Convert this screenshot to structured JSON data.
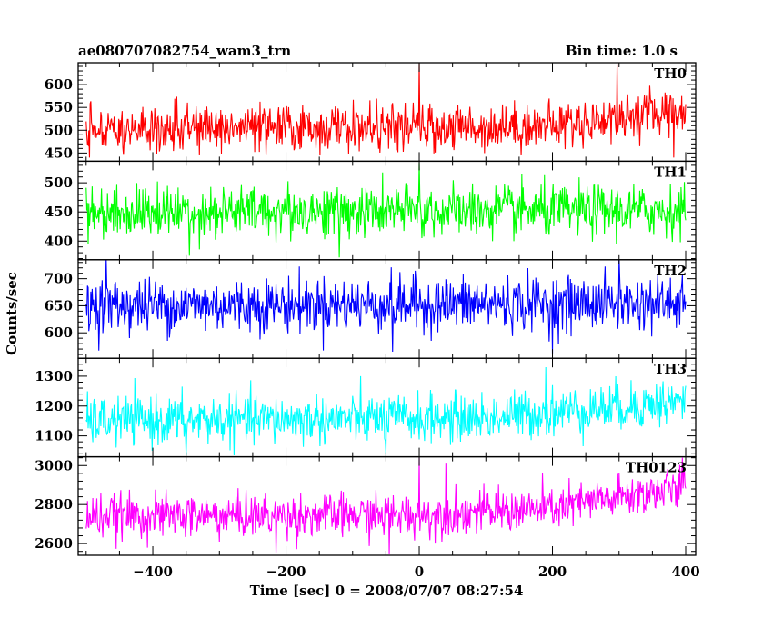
{
  "chart_data": {
    "type": "line",
    "title": "ae080707082754_wam3_trn",
    "bin_time_label": "Bin time: 1.0 s",
    "xlabel": "Time [sec] 0 = 2008/07/07 08:27:54",
    "ylabel": "Counts/sec",
    "xlim": [
      -512,
      415
    ],
    "x_range": [
      -500,
      400
    ],
    "x_ticks": [
      -400,
      -200,
      0,
      200,
      400
    ],
    "x_tick_labels": [
      "−400",
      "−200",
      "0",
      "200",
      "400"
    ],
    "panels": [
      {
        "name": "TH0",
        "color": "#ff0000",
        "ylim": [
          432,
          648
        ],
        "y_ticks": [
          450,
          500,
          550,
          600
        ],
        "y_tick_labels": [
          "450",
          "500",
          "550",
          "600"
        ],
        "trend": [
          [
            -500,
            505
          ],
          [
            0,
            505
          ],
          [
            200,
            510
          ],
          [
            400,
            545
          ]
        ],
        "noise_sd": 25,
        "spikes": [
          [
            -495,
            440
          ],
          [
            -230,
            445
          ],
          [
            0,
            650
          ],
          [
            297,
            645
          ],
          [
            382,
            440
          ]
        ]
      },
      {
        "name": "TH1",
        "color": "#00ff00",
        "ylim": [
          368,
          537
        ],
        "y_ticks": [
          400,
          450,
          500
        ],
        "y_tick_labels": [
          "400",
          "450",
          "500"
        ],
        "trend": [
          [
            -500,
            450
          ],
          [
            400,
            452
          ]
        ],
        "noise_sd": 22,
        "spikes": [
          [
            -120,
            372
          ],
          [
            0,
            535
          ],
          [
            -345,
            375
          ]
        ]
      },
      {
        "name": "TH2",
        "color": "#0000ff",
        "ylim": [
          553,
          735
        ],
        "y_ticks": [
          600,
          650,
          700
        ],
        "y_tick_labels": [
          "600",
          "650",
          "700"
        ],
        "trend": [
          [
            -500,
            650
          ],
          [
            400,
            655
          ]
        ],
        "noise_sd": 25,
        "spikes": [
          [
            -470,
            740
          ],
          [
            200,
            560
          ],
          [
            -40,
            565
          ],
          [
            300,
            740
          ]
        ]
      },
      {
        "name": "TH3",
        "color": "#00ffff",
        "ylim": [
          1030,
          1360
        ],
        "y_ticks": [
          1100,
          1200,
          1300
        ],
        "y_tick_labels": [
          "1100",
          "1200",
          "1300"
        ],
        "trend": [
          [
            -500,
            1150
          ],
          [
            100,
            1160
          ],
          [
            200,
            1180
          ],
          [
            400,
            1215
          ]
        ],
        "noise_sd": 40,
        "spikes": [
          [
            -350,
            1035
          ],
          [
            -50,
            1040
          ],
          [
            190,
            1330
          ]
        ]
      },
      {
        "name": "TH0123",
        "color": "#ff00ff",
        "ylim": [
          2540,
          3045
        ],
        "y_ticks": [
          2600,
          2800,
          3000
        ],
        "y_tick_labels": [
          "2600",
          "2800",
          "3000"
        ],
        "trend": [
          [
            -500,
            2740
          ],
          [
            0,
            2745
          ],
          [
            200,
            2780
          ],
          [
            400,
            2890
          ]
        ],
        "noise_sd": 55,
        "spikes": [
          [
            0,
            3040
          ],
          [
            40,
            3010
          ],
          [
            -45,
            2545
          ],
          [
            -215,
            2550
          ],
          [
            395,
            3040
          ]
        ]
      }
    ]
  }
}
